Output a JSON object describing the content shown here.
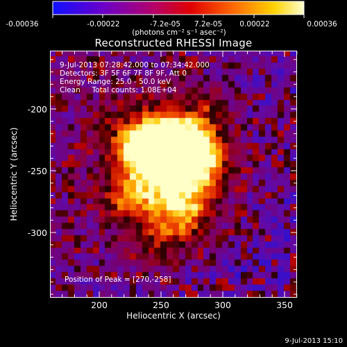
{
  "colorbar": {
    "tick_labels": [
      "-0.00036",
      "-0.00022",
      "-7.2e-05",
      "7.2e-05",
      "0.00022",
      "0.00036"
    ],
    "unit_label": "(photons cm⁻² s⁻¹ asec⁻²)"
  },
  "plot": {
    "title": "Reconstructed RHESSI Image",
    "xlabel": "Heliocentric X (arcsec)",
    "ylabel": "Heliocentric Y (arcsec)",
    "x_ticks": [
      "200",
      "250",
      "300",
      "350"
    ],
    "y_ticks": [
      "-200",
      "-250",
      "-300"
    ]
  },
  "info": {
    "line1": "9-Jul-2013 07:28:42.000 to 07:34:42.000",
    "line2": "Detectors: 3F 5F 6F 7F 8F 9F, Att 0",
    "line3": "Energy Range: 25.0 - 50.0 keV",
    "line4_label": "Clean",
    "line4_counts": "Total counts: 1.08E+04",
    "peak": "Position of Peak = [270,-258]"
  },
  "footer": {
    "timestamp": "9-Jul-2013 15:10"
  },
  "colors": {
    "background": "#000000",
    "axis": "#ffffff"
  }
}
